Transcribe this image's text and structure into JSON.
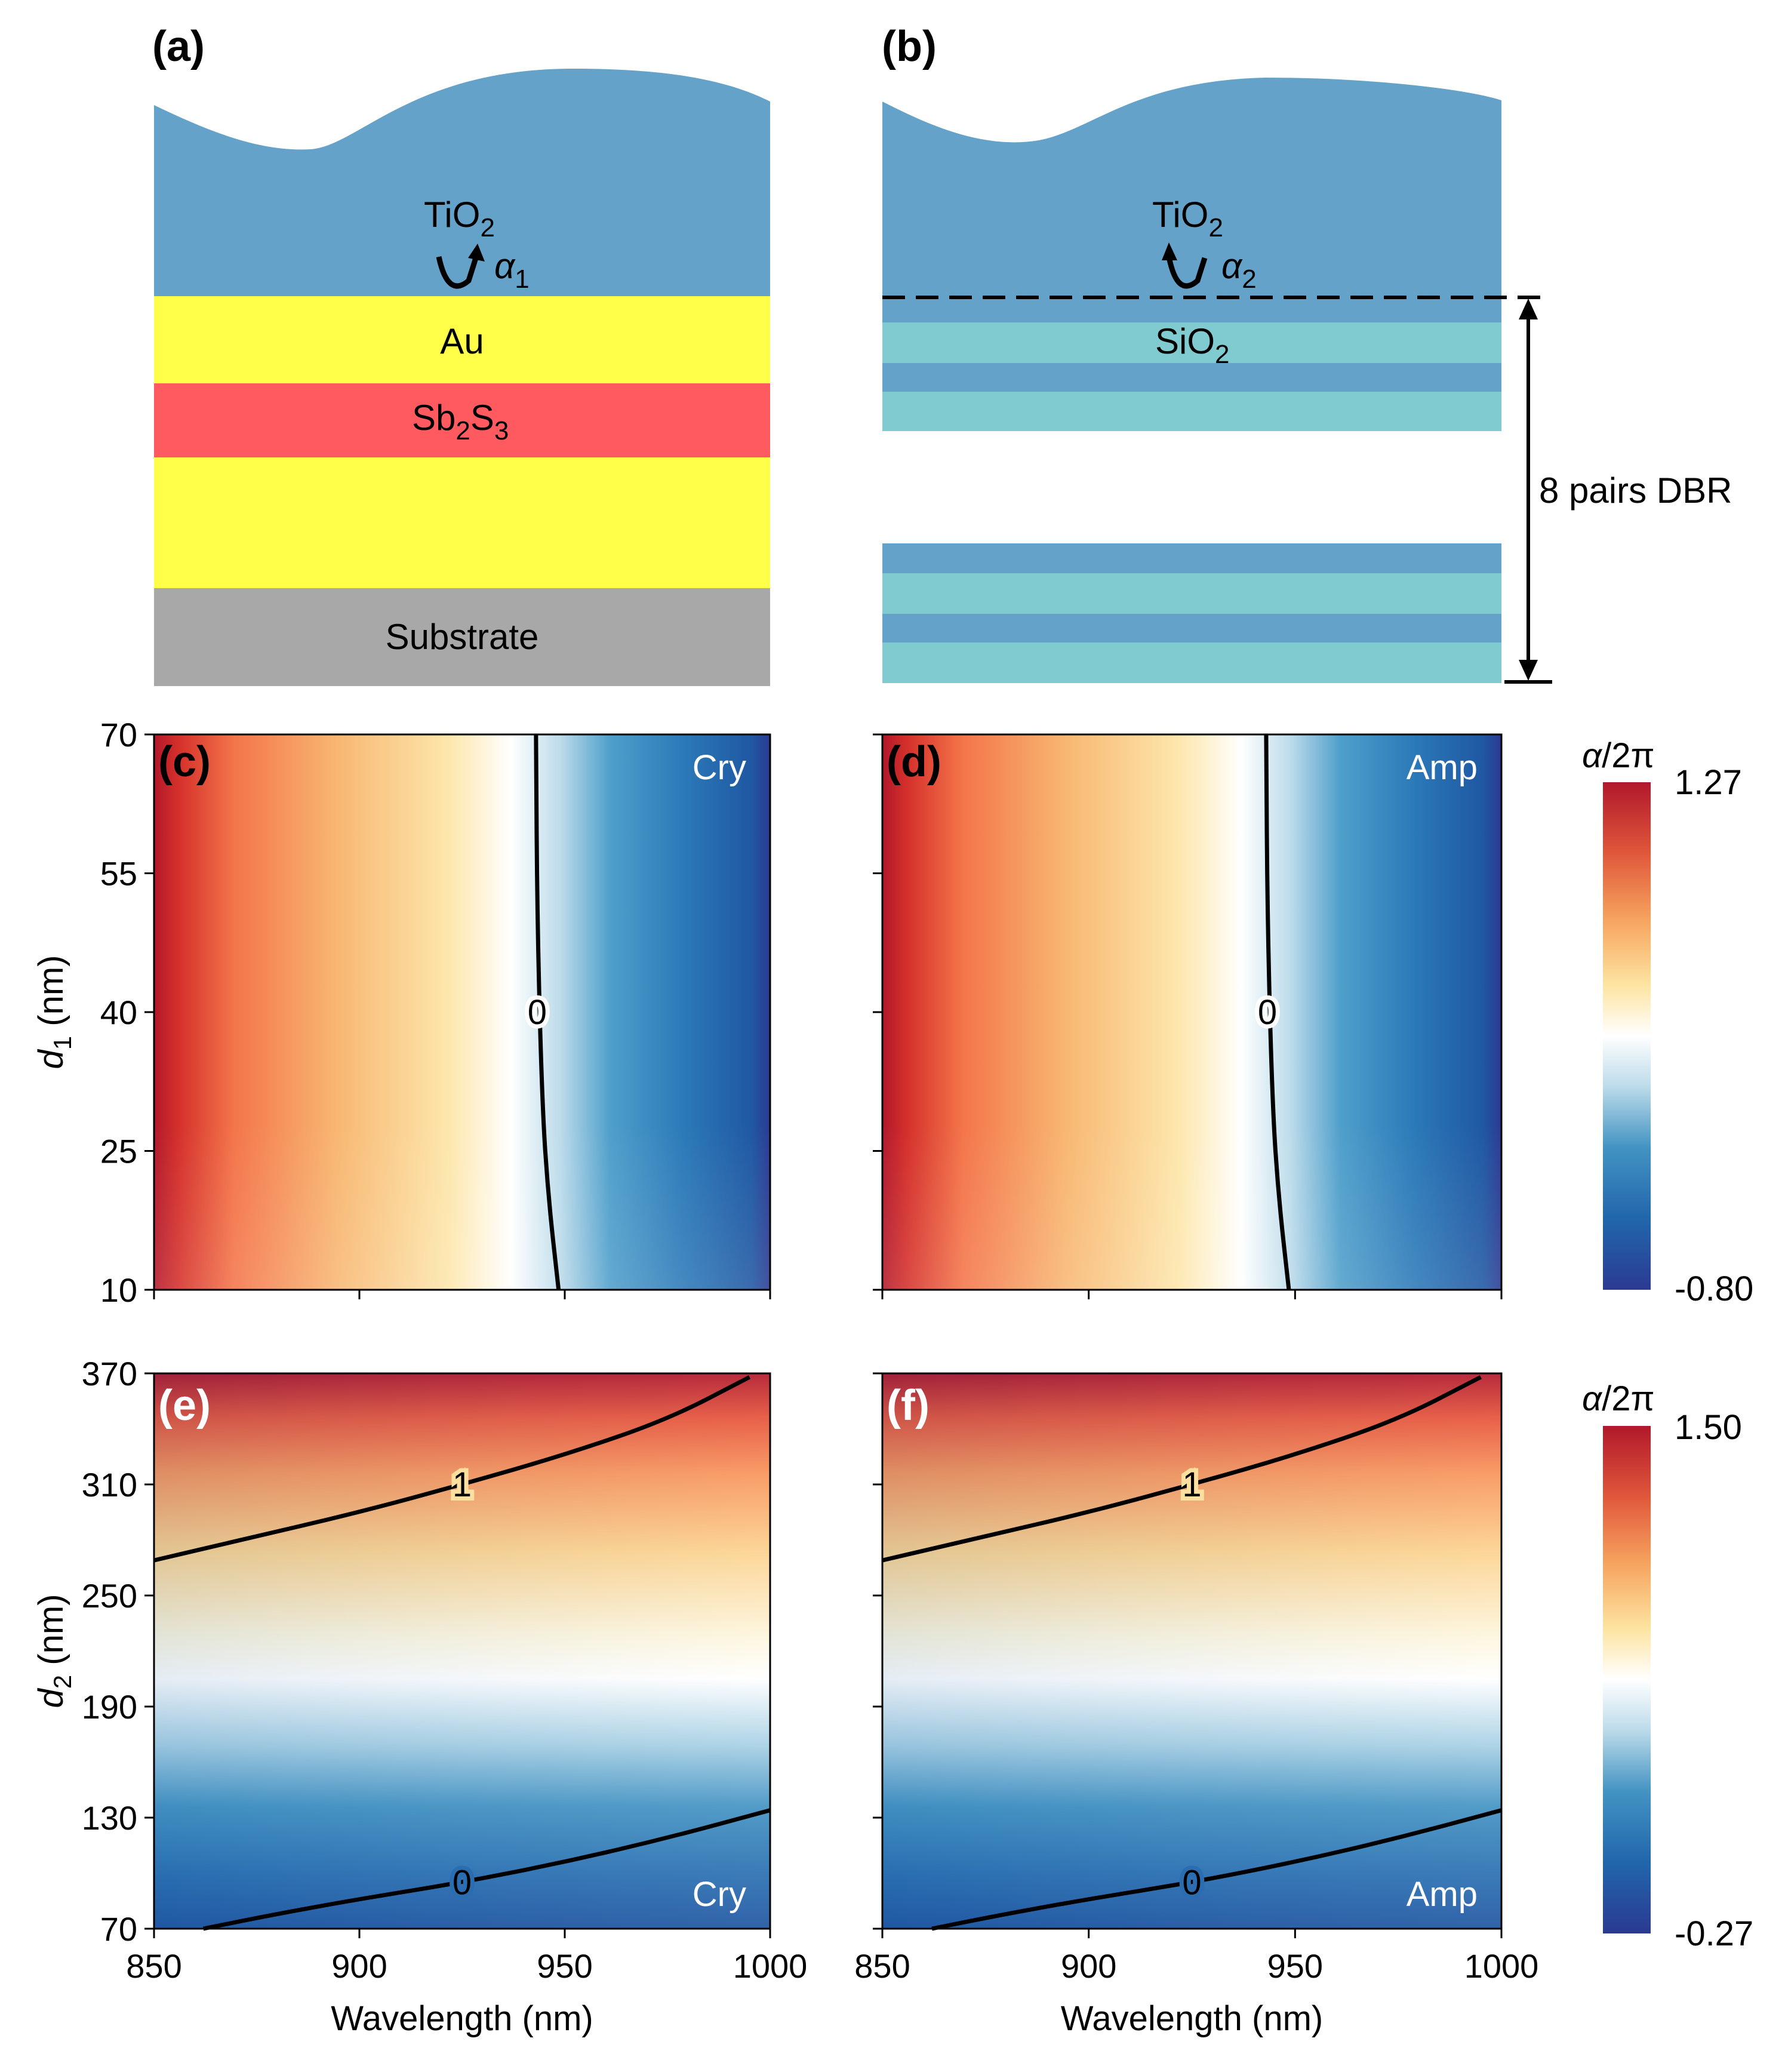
{
  "panel_labels": {
    "a": "(a)",
    "b": "(b)",
    "c": "(c)",
    "d": "(d)",
    "e": "(e)",
    "f": "(f)"
  },
  "schematic_a": {
    "top_layer": {
      "text": "TiO",
      "sub": "2"
    },
    "angle": {
      "symbol": "α",
      "sub": "1"
    },
    "au_label": "Au",
    "sb_label": {
      "p1": "Sb",
      "s1": "2",
      "p2": "S",
      "s2": "3"
    },
    "substrate_label": "Substrate",
    "colors": {
      "tio2": "#65a2ca",
      "au": "#ffff4a",
      "sb2s3": "#fe5a60",
      "substrate": "#a8a8a8"
    }
  },
  "schematic_b": {
    "top_layer": {
      "text": "TiO",
      "sub": "2"
    },
    "angle": {
      "symbol": "α",
      "sub": "2"
    },
    "sio2_label": {
      "text": "SiO",
      "sub": "2"
    },
    "dbr_label": "8 pairs DBR",
    "colors": {
      "tio2": "#65a2ca",
      "sio2": "#7fcbd0"
    }
  },
  "chart_data": [
    {
      "id": "c",
      "type": "heatmap",
      "corner": "Cry",
      "xlim": [
        850,
        1000
      ],
      "ylim": [
        10,
        70
      ],
      "xticks": [
        "850",
        "900",
        "950",
        "1000"
      ],
      "yticks": [
        "10",
        "25",
        "40",
        "55",
        "70"
      ],
      "xlabel": "",
      "ylabel": {
        "italic": "d",
        "sub": "1",
        "rest": " (nm)"
      },
      "gradient": "x",
      "contours": [
        {
          "label": "0",
          "points": [
            [
              943,
              70
            ],
            [
              943.3,
              50
            ],
            [
              944.5,
              30
            ],
            [
              946,
              20
            ],
            [
              948.5,
              10
            ]
          ],
          "label_at": [
            943.3,
            40
          ]
        }
      ]
    },
    {
      "id": "d",
      "type": "heatmap",
      "corner": "Amp",
      "xlim": [
        850,
        1000
      ],
      "ylim": [
        10,
        70
      ],
      "xticks": [
        "850",
        "900",
        "950",
        "1000"
      ],
      "yticks": [],
      "xlabel": "",
      "ylabel": null,
      "gradient": "x",
      "contours": [
        {
          "label": "0",
          "points": [
            [
              943,
              70
            ],
            [
              943.3,
              50
            ],
            [
              944.5,
              30
            ],
            [
              946,
              20
            ],
            [
              948.5,
              10
            ]
          ],
          "label_at": [
            943.3,
            40
          ]
        }
      ]
    },
    {
      "id": "e",
      "type": "heatmap",
      "corner": "Cry",
      "xlim": [
        850,
        1000
      ],
      "ylim": [
        70,
        370
      ],
      "xticks": [
        "850",
        "900",
        "950",
        "1000"
      ],
      "yticks": [
        "70",
        "130",
        "190",
        "250",
        "310",
        "370"
      ],
      "xlabel": "Wavelength (nm)",
      "ylabel": {
        "italic": "d",
        "sub": "2",
        "rest": " (nm)"
      },
      "gradient": "y",
      "contours": [
        {
          "label": "1",
          "points": [
            [
              850,
              269
            ],
            [
              875,
              282
            ],
            [
              900,
              295
            ],
            [
              925,
              310
            ],
            [
              950,
              326
            ],
            [
              975,
              345
            ],
            [
              995,
              368
            ]
          ],
          "label_at": [
            925,
            310
          ]
        },
        {
          "label": "0",
          "points": [
            [
              862,
              70
            ],
            [
              880,
              78
            ],
            [
              900,
              86
            ],
            [
              925,
              95
            ],
            [
              950,
              106
            ],
            [
              975,
              119
            ],
            [
              1000,
              134
            ]
          ],
          "label_at": [
            925,
            95
          ]
        }
      ]
    },
    {
      "id": "f",
      "type": "heatmap",
      "corner": "Amp",
      "xlim": [
        850,
        1000
      ],
      "ylim": [
        70,
        370
      ],
      "xticks": [
        "850",
        "900",
        "950",
        "1000"
      ],
      "yticks": [],
      "xlabel": "Wavelength (nm)",
      "ylabel": null,
      "gradient": "y",
      "contours": [
        {
          "label": "1",
          "points": [
            [
              850,
              269
            ],
            [
              875,
              282
            ],
            [
              900,
              295
            ],
            [
              925,
              310
            ],
            [
              950,
              326
            ],
            [
              975,
              345
            ],
            [
              995,
              368
            ]
          ],
          "label_at": [
            925,
            310
          ]
        },
        {
          "label": "0",
          "points": [
            [
              862,
              70
            ],
            [
              880,
              78
            ],
            [
              900,
              86
            ],
            [
              925,
              95
            ],
            [
              950,
              106
            ],
            [
              975,
              119
            ],
            [
              1000,
              134
            ]
          ],
          "label_at": [
            925,
            95
          ]
        }
      ]
    }
  ],
  "colorbars": [
    {
      "id": "cb1",
      "title": {
        "italic": "α",
        "rest": "/2π"
      },
      "max": "1.27",
      "min": "-0.80"
    },
    {
      "id": "cb2",
      "title": {
        "italic": "α",
        "rest": "/2π"
      },
      "max": "1.50",
      "min": "-0.27"
    }
  ],
  "colormap": [
    "#2b3a92",
    "#2166ac",
    "#4393c3",
    "#92c5de",
    "#ffffff",
    "#fddb86",
    "#f4a05a",
    "#e05e3c",
    "#b2182b"
  ]
}
